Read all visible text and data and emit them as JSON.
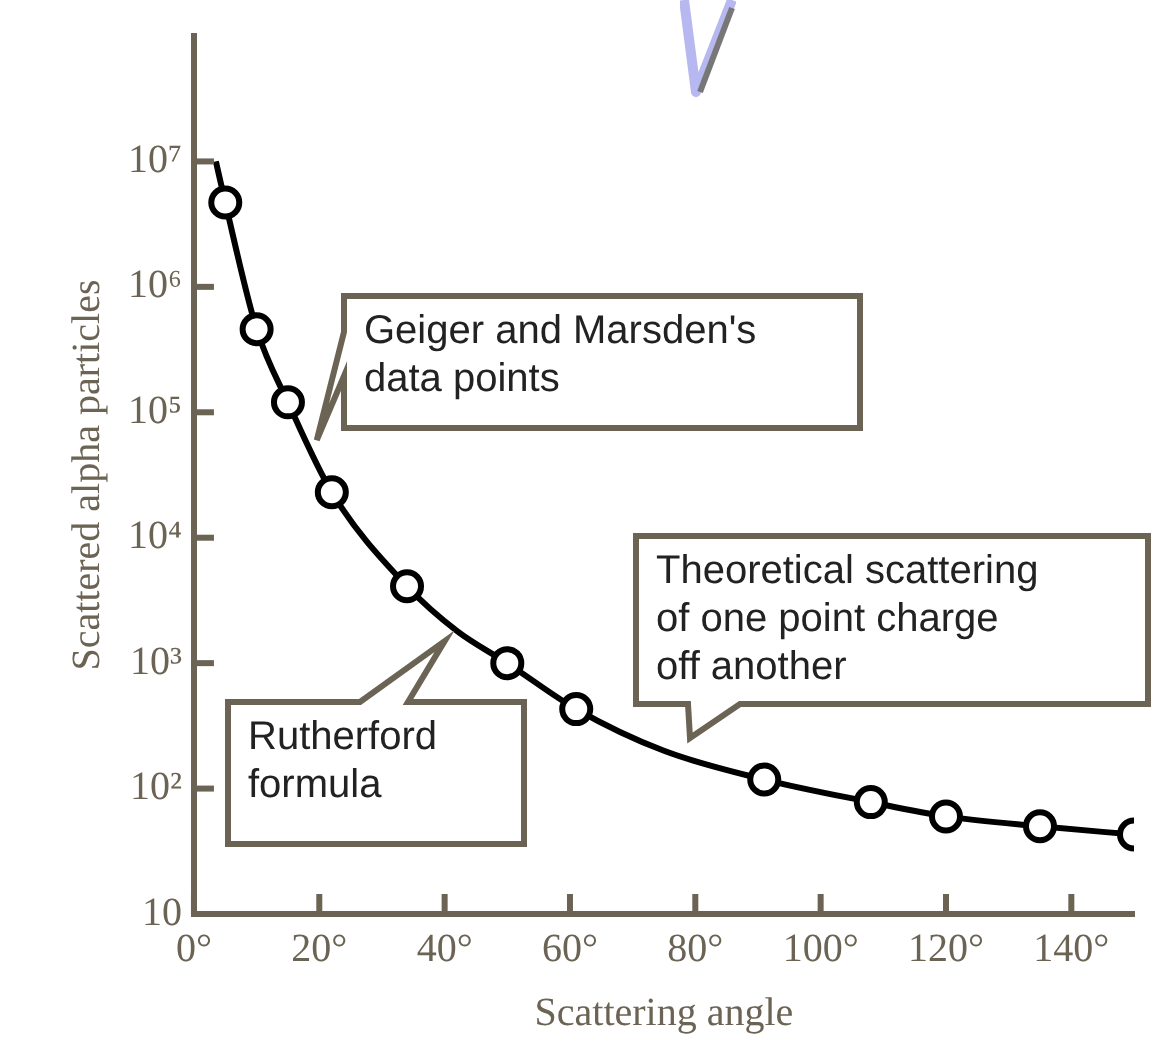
{
  "chart_data": {
    "type": "scatter",
    "xlabel": "Scattering angle",
    "ylabel": "Scattered alpha particles",
    "xlim": [
      0,
      150
    ],
    "ylim": [
      10,
      100000000
    ],
    "log": "y",
    "xticks": [
      {
        "value": 0,
        "label": "0°"
      },
      {
        "value": 20,
        "label": "20°"
      },
      {
        "value": 40,
        "label": "40°"
      },
      {
        "value": 60,
        "label": "60°"
      },
      {
        "value": 80,
        "label": "80°"
      },
      {
        "value": 100,
        "label": "100°"
      },
      {
        "value": 120,
        "label": "120°"
      },
      {
        "value": 140,
        "label": "140°"
      }
    ],
    "yticks": [
      10,
      {
        "value": 100,
        "label": "10²"
      },
      {
        "value": 1000,
        "label": "10³"
      },
      {
        "value": 10000,
        "label": "10⁴"
      },
      {
        "value": 100000,
        "label": "10⁵"
      },
      {
        "value": 1000000,
        "label": "10⁶"
      },
      {
        "value": 10000000,
        "label": "10⁷"
      }
    ],
    "grid": false,
    "legend": false,
    "marker": "circle",
    "series": [
      {
        "type": "line",
        "color": "#000000",
        "marker": "none",
        "x": [
          3.5,
          5,
          10,
          15,
          22,
          34,
          42,
          50,
          61,
          75,
          91,
          108,
          120,
          135,
          150
        ],
        "values": [
          10000000,
          4700000,
          460000,
          120000,
          23000,
          4100,
          1800,
          1000,
          430,
          200,
          118,
          78,
          60,
          50,
          43
        ]
      },
      {
        "color": "#000000",
        "x": [
          5,
          10,
          15,
          22,
          34,
          50,
          61,
          91,
          108,
          120,
          135,
          150
        ],
        "values": [
          4700000,
          460000,
          120000,
          23000,
          4100,
          1000,
          430,
          118,
          78,
          60,
          50,
          43
        ]
      }
    ],
    "annotations": [
      {
        "text": "Geiger and Marsden's\ndata points",
        "x": 18,
        "y": 60000
      },
      {
        "text": "Rutherford\nformula",
        "x": 40,
        "y": 1800
      },
      "Theoretical scattering\nof one point charge\noff another"
    ]
  }
}
